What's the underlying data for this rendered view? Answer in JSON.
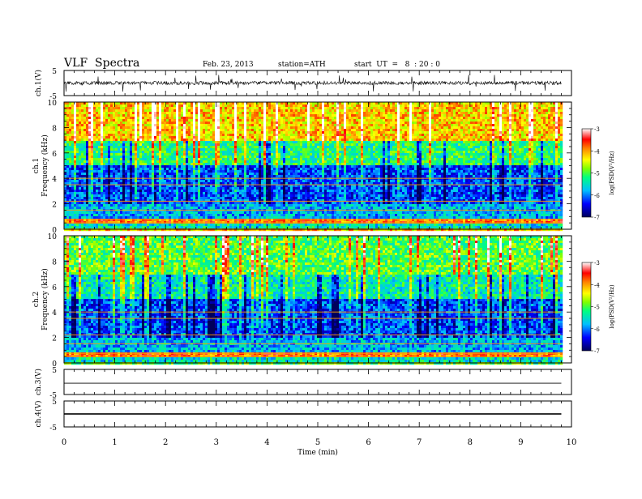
{
  "header": {
    "title": "VLF  Spectra",
    "date": "Feb. 23, 2013",
    "station": "station=ATH",
    "start": "start  UT  =   8  : 20 : 0"
  },
  "chart_data": [
    {
      "type": "line",
      "title": "",
      "ylabel": "ch.1(V)",
      "ylim": [
        -5,
        5
      ],
      "yticks": [
        "5",
        "-5"
      ],
      "series": [
        {
          "values": "noise-like waveform centered near 0 V with amplitude about ±0.6 V and frequent spikes"
        }
      ],
      "color": "#000000"
    },
    {
      "type": "heatmap",
      "ylabel_ch": "ch.1",
      "ylabel": "Frequency  (kHz)",
      "ylim": [
        0,
        10
      ],
      "yticks": [
        "0",
        "2",
        "4",
        "6",
        "8",
        "10"
      ],
      "colorbar": {
        "label": "log(PSD(V²/Hz)",
        "range": [
          -7,
          -3
        ],
        "ticks": [
          "-3",
          "-4",
          "-5",
          "-6",
          "-7"
        ]
      },
      "bands_log_psd": [
        {
          "f_range": [
            0,
            0.5
          ],
          "value": -5.5
        },
        {
          "f_range": [
            0.5,
            0.8
          ],
          "value": -3.8
        },
        {
          "f_range": [
            0.8,
            2
          ],
          "value": -5.8
        },
        {
          "f_range": [
            2,
            5
          ],
          "value": -6.2
        },
        {
          "f_range": [
            5,
            7
          ],
          "value": -5.2
        },
        {
          "f_range": [
            7,
            10
          ],
          "value": -4.2
        }
      ]
    },
    {
      "type": "heatmap",
      "ylabel_ch": "ch.2",
      "ylabel": "Frequency  (kHz)",
      "ylim": [
        0,
        10
      ],
      "yticks": [
        "0",
        "2",
        "4",
        "6",
        "8",
        "10"
      ],
      "colorbar": {
        "label": "log(PSD(V²/Hz)",
        "range": [
          -7,
          -3
        ],
        "ticks": [
          "-3",
          "-4",
          "-5",
          "-6",
          "-7"
        ]
      },
      "bands_log_psd": [
        {
          "f_range": [
            0,
            0.5
          ],
          "value": -5.5
        },
        {
          "f_range": [
            0.5,
            0.8
          ],
          "value": -3.8
        },
        {
          "f_range": [
            0.8,
            2
          ],
          "value": -5.8
        },
        {
          "f_range": [
            2,
            5
          ],
          "value": -6.2
        },
        {
          "f_range": [
            5,
            7
          ],
          "value": -5.4
        },
        {
          "f_range": [
            7,
            10
          ],
          "value": -5.0
        }
      ]
    },
    {
      "type": "line",
      "ylabel": "ch.3(V)",
      "ylim": [
        -5,
        5
      ],
      "yticks": [
        "5",
        "-5"
      ],
      "series": [
        {
          "values": "flat line near 0 V"
        }
      ]
    },
    {
      "type": "line",
      "ylabel": "ch.4(V)",
      "ylim": [
        -5,
        5
      ],
      "yticks": [
        "5",
        "-5"
      ],
      "series": [
        {
          "values": "dense band centered near 0 V"
        }
      ]
    }
  ],
  "x_axis": {
    "xlabel": "Time  (min)",
    "xlim": [
      0,
      10
    ],
    "xticks": [
      "0",
      "1",
      "2",
      "3",
      "4",
      "5",
      "6",
      "7",
      "8",
      "9",
      "10"
    ],
    "data_end": 9.8
  }
}
